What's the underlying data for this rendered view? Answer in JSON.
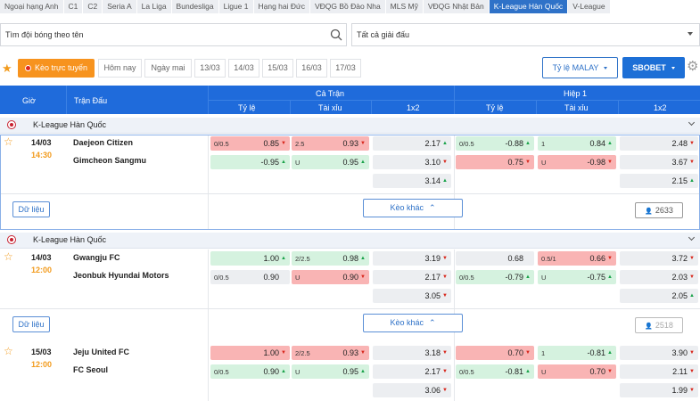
{
  "leagues": [
    "Ngoại hạng Anh",
    "C1",
    "C2",
    "Seria A",
    "La Liga",
    "Bundesliga",
    "Ligue 1",
    "Hạng hai Đức",
    "VĐQG Bồ Đào Nha",
    "MLS Mỹ",
    "VĐQG Nhật Bản",
    "K-League Hàn Quốc",
    "V-League"
  ],
  "active_league": "K-League Hàn Quốc",
  "search": {
    "placeholder": "Tìm đội bóng theo tên"
  },
  "league_select": {
    "value": "Tất cả giải đấu"
  },
  "datebar": {
    "live": "Kèo trực tuyến",
    "dates": [
      "Hôm nay",
      "Ngày mai",
      "13/03",
      "14/03",
      "15/03",
      "16/03",
      "17/03"
    ],
    "odds_format": "Tỷ lệ MALAY",
    "bookmaker": "SBOBET"
  },
  "header": {
    "time": "Giờ",
    "match": "Trận Đấu",
    "full_match": "Cả Trận",
    "half1": "Hiệp 1",
    "handicap": "Tỷ lệ",
    "over_under": "Tài xỉu",
    "x12": "1x2"
  },
  "colors": {
    "accent": "#1f6bdb",
    "live": "#f7931e",
    "up": "#1aa34a",
    "down": "#d8261b"
  },
  "blocks": [
    {
      "league": "K-League Hàn Quốc",
      "date": "14/03",
      "time": "14:30",
      "home": "Daejeon Citizen",
      "away": "Gimcheon Sangmu",
      "data_btn": "Dữ liệu",
      "more_btn": "Kèo khác",
      "watchers": "2633",
      "rows": [
        [
          [
            "r",
            "0/0.5",
            "0.85",
            "dn"
          ],
          [
            "r",
            "2.5",
            "0.93",
            "dn"
          ],
          [
            "n",
            "",
            "2.17",
            "up"
          ],
          [
            "g",
            "0/0.5",
            "-0.88",
            "up"
          ],
          [
            "g",
            "1",
            "0.84",
            "up"
          ],
          [
            "n",
            "",
            "2.48",
            "dn"
          ]
        ],
        [
          [
            "g",
            "",
            "-0.95",
            "up"
          ],
          [
            "g",
            "U",
            "0.95",
            "up"
          ],
          [
            "n",
            "",
            "3.10",
            "dn"
          ],
          [
            "r",
            "",
            "0.75",
            "dn"
          ],
          [
            "r",
            "U",
            "-0.98",
            "dn"
          ],
          [
            "n",
            "",
            "3.67",
            "dn"
          ]
        ],
        [
          null,
          null,
          [
            "n",
            "",
            "3.14",
            "up"
          ],
          null,
          null,
          [
            "n",
            "",
            "2.15",
            "up"
          ]
        ]
      ]
    },
    {
      "league": "K-League Hàn Quốc",
      "date": "14/03",
      "time": "12:00",
      "home": "Gwangju FC",
      "away": "Jeonbuk Hyundai Motors",
      "data_btn": "Dữ liệu",
      "more_btn": "Kèo khác",
      "watchers": "2518",
      "rows": [
        [
          [
            "g",
            "",
            "1.00",
            "up"
          ],
          [
            "g",
            "2/2.5",
            "0.98",
            "up"
          ],
          [
            "n",
            "",
            "3.19",
            "dn"
          ],
          [
            "n",
            "",
            "0.68",
            ""
          ],
          [
            "r",
            "0.5/1",
            "0.66",
            "dn"
          ],
          [
            "n",
            "",
            "3.72",
            "dn"
          ]
        ],
        [
          [
            "n",
            "0/0.5",
            "0.90",
            ""
          ],
          [
            "r",
            "U",
            "0.90",
            "dn"
          ],
          [
            "n",
            "",
            "2.17",
            "dn"
          ],
          [
            "g",
            "0/0.5",
            "-0.79",
            "up"
          ],
          [
            "g",
            "U",
            "-0.75",
            "up"
          ],
          [
            "n",
            "",
            "2.03",
            "dn"
          ]
        ],
        [
          null,
          null,
          [
            "n",
            "",
            "3.05",
            "dn"
          ],
          null,
          null,
          [
            "n",
            "",
            "2.05",
            "up"
          ]
        ]
      ]
    },
    {
      "date": "15/03",
      "time": "12:00",
      "home": "Jeju United FC",
      "away": "FC Seoul",
      "rows": [
        [
          [
            "r",
            "",
            "1.00",
            "dn"
          ],
          [
            "r",
            "2/2.5",
            "0.93",
            "dn"
          ],
          [
            "n",
            "",
            "3.18",
            "dn"
          ],
          [
            "r",
            "",
            "0.70",
            "dn"
          ],
          [
            "g",
            "1",
            "-0.81",
            "up"
          ],
          [
            "n",
            "",
            "3.90",
            "dn"
          ]
        ],
        [
          [
            "g",
            "0/0.5",
            "0.90",
            "up"
          ],
          [
            "g",
            "U",
            "0.95",
            "up"
          ],
          [
            "n",
            "",
            "2.17",
            "dn"
          ],
          [
            "g",
            "0/0.5",
            "-0.81",
            "up"
          ],
          [
            "r",
            "U",
            "0.70",
            "dn"
          ],
          [
            "n",
            "",
            "2.11",
            "dn"
          ]
        ],
        [
          null,
          null,
          [
            "n",
            "",
            "3.06",
            "dn"
          ],
          null,
          null,
          [
            "n",
            "",
            "1.99",
            "dn"
          ]
        ]
      ]
    }
  ]
}
